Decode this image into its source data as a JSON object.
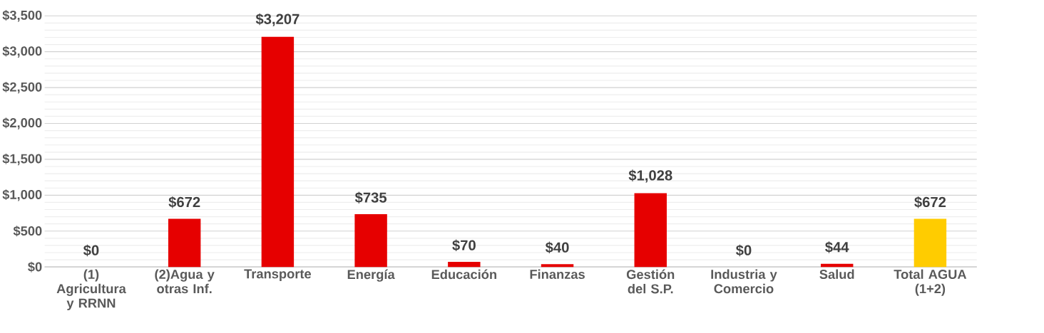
{
  "chart_data": {
    "type": "bar",
    "categories": [
      "(1) Agricultura y RRNN",
      "(2)Agua y otras Inf.",
      "Transporte",
      "Energía",
      "Educación",
      "Finanzas",
      "Gestión del S.P.",
      "Industria y Comercio",
      "Salud",
      "Total AGUA (1+2)"
    ],
    "values": [
      0,
      672,
      3207,
      735,
      70,
      40,
      1028,
      0,
      44,
      672
    ],
    "colors": [
      "#e60000",
      "#e60000",
      "#e60000",
      "#e60000",
      "#e60000",
      "#e60000",
      "#e60000",
      "#e60000",
      "#e60000",
      "#ffcc00"
    ],
    "value_labels": [
      "$0",
      "$672",
      "$3,207",
      "$735",
      "$70",
      "$40",
      "$1,028",
      "$0",
      "$44",
      "$672"
    ],
    "ylim": [
      0,
      3500
    ],
    "yticks": [
      {
        "value": 0,
        "label": "$0"
      },
      {
        "value": 500,
        "label": "$500"
      },
      {
        "value": 1000,
        "label": "$1,000"
      },
      {
        "value": 1500,
        "label": "$1,500"
      },
      {
        "value": 2000,
        "label": "$2,000"
      },
      {
        "value": 2500,
        "label": "$2,500"
      },
      {
        "value": 3000,
        "label": "$3,000"
      },
      {
        "value": 3500,
        "label": "$3,500"
      }
    ],
    "grid": true
  }
}
